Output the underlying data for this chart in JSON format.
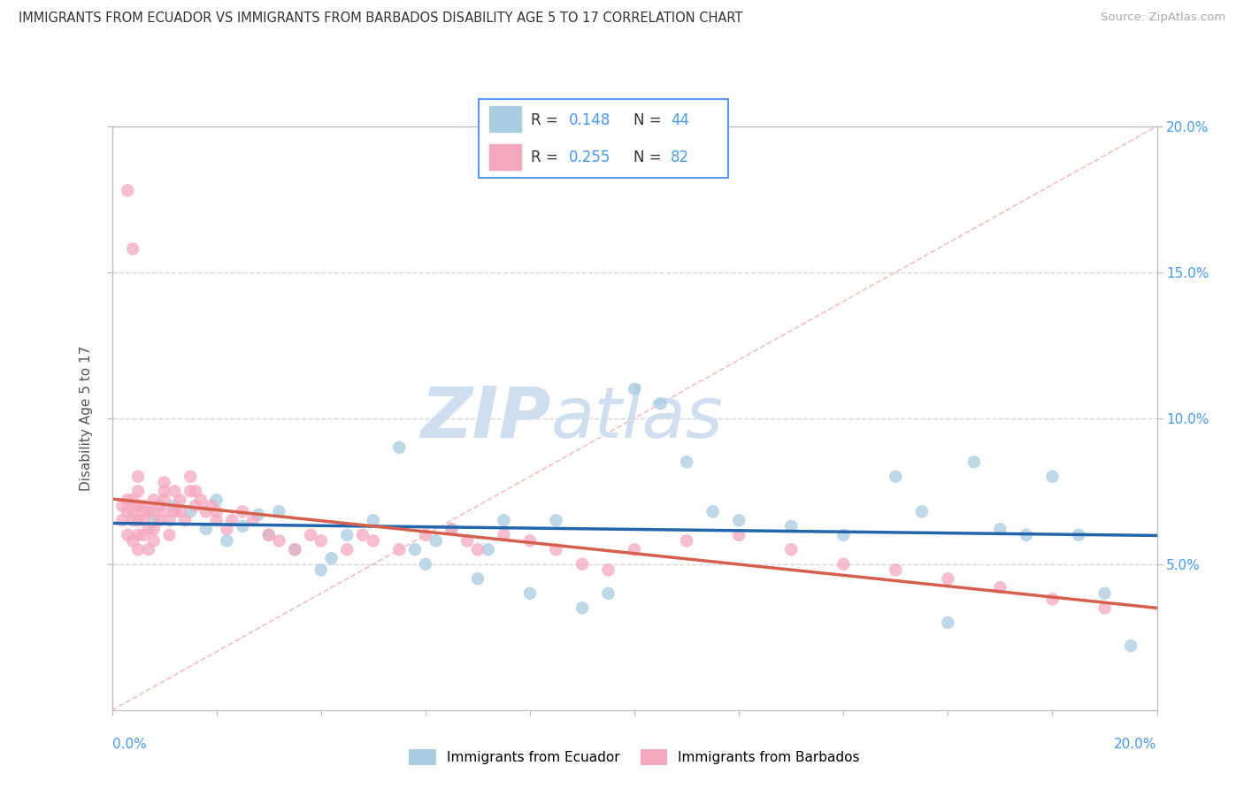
{
  "title": "IMMIGRANTS FROM ECUADOR VS IMMIGRANTS FROM BARBADOS DISABILITY AGE 5 TO 17 CORRELATION CHART",
  "source": "Source: ZipAtlas.com",
  "ylabel": "Disability Age 5 to 17",
  "ecuador_color": "#a8cce0",
  "barbados_color": "#f4a8be",
  "ecuador_line_color": "#2166ac",
  "barbados_line_color": "#d6604d",
  "legend_box_color": "#5599ff",
  "ecuador_R": 0.148,
  "barbados_R": 0.255,
  "ecuador_N": 44,
  "barbados_N": 82,
  "background_color": "#ffffff",
  "grid_color": "#dddddd",
  "watermark_color": "#d0dff0",
  "tick_label_color": "#4499ff",
  "xlim": [
    0.0,
    0.2
  ],
  "ylim": [
    0.0,
    0.2
  ],
  "ecuador_scatter_x": [
    0.008,
    0.012,
    0.015,
    0.018,
    0.02,
    0.022,
    0.025,
    0.028,
    0.03,
    0.032,
    0.035,
    0.04,
    0.042,
    0.045,
    0.05,
    0.055,
    0.058,
    0.06,
    0.062,
    0.065,
    0.07,
    0.072,
    0.075,
    0.08,
    0.085,
    0.09,
    0.095,
    0.1,
    0.105,
    0.11,
    0.115,
    0.12,
    0.13,
    0.14,
    0.15,
    0.155,
    0.16,
    0.165,
    0.17,
    0.175,
    0.18,
    0.185,
    0.19,
    0.195
  ],
  "ecuador_scatter_y": [
    0.065,
    0.07,
    0.068,
    0.062,
    0.072,
    0.058,
    0.063,
    0.067,
    0.06,
    0.068,
    0.055,
    0.048,
    0.052,
    0.06,
    0.065,
    0.09,
    0.055,
    0.05,
    0.058,
    0.062,
    0.045,
    0.055,
    0.065,
    0.04,
    0.065,
    0.035,
    0.04,
    0.11,
    0.105,
    0.085,
    0.068,
    0.065,
    0.063,
    0.06,
    0.08,
    0.068,
    0.03,
    0.085,
    0.062,
    0.06,
    0.08,
    0.06,
    0.04,
    0.022
  ],
  "barbados_scatter_x": [
    0.002,
    0.002,
    0.003,
    0.003,
    0.003,
    0.004,
    0.004,
    0.004,
    0.004,
    0.005,
    0.005,
    0.005,
    0.005,
    0.005,
    0.005,
    0.006,
    0.006,
    0.006,
    0.006,
    0.007,
    0.007,
    0.007,
    0.008,
    0.008,
    0.008,
    0.008,
    0.009,
    0.009,
    0.01,
    0.01,
    0.01,
    0.01,
    0.011,
    0.011,
    0.012,
    0.012,
    0.013,
    0.013,
    0.014,
    0.015,
    0.015,
    0.016,
    0.016,
    0.017,
    0.018,
    0.019,
    0.02,
    0.02,
    0.022,
    0.023,
    0.025,
    0.027,
    0.03,
    0.032,
    0.035,
    0.038,
    0.04,
    0.045,
    0.048,
    0.05,
    0.055,
    0.06,
    0.065,
    0.068,
    0.07,
    0.075,
    0.08,
    0.085,
    0.09,
    0.095,
    0.1,
    0.11,
    0.12,
    0.13,
    0.14,
    0.15,
    0.16,
    0.17,
    0.18,
    0.19,
    0.003,
    0.004
  ],
  "barbados_scatter_y": [
    0.065,
    0.07,
    0.06,
    0.068,
    0.072,
    0.058,
    0.065,
    0.068,
    0.072,
    0.06,
    0.065,
    0.07,
    0.075,
    0.08,
    0.055,
    0.06,
    0.065,
    0.068,
    0.07,
    0.055,
    0.062,
    0.068,
    0.058,
    0.062,
    0.068,
    0.072,
    0.065,
    0.07,
    0.068,
    0.072,
    0.075,
    0.078,
    0.06,
    0.065,
    0.068,
    0.075,
    0.068,
    0.072,
    0.065,
    0.075,
    0.08,
    0.07,
    0.075,
    0.072,
    0.068,
    0.07,
    0.065,
    0.068,
    0.062,
    0.065,
    0.068,
    0.065,
    0.06,
    0.058,
    0.055,
    0.06,
    0.058,
    0.055,
    0.06,
    0.058,
    0.055,
    0.06,
    0.062,
    0.058,
    0.055,
    0.06,
    0.058,
    0.055,
    0.05,
    0.048,
    0.055,
    0.058,
    0.06,
    0.055,
    0.05,
    0.048,
    0.045,
    0.042,
    0.038,
    0.035,
    0.178,
    0.158
  ]
}
